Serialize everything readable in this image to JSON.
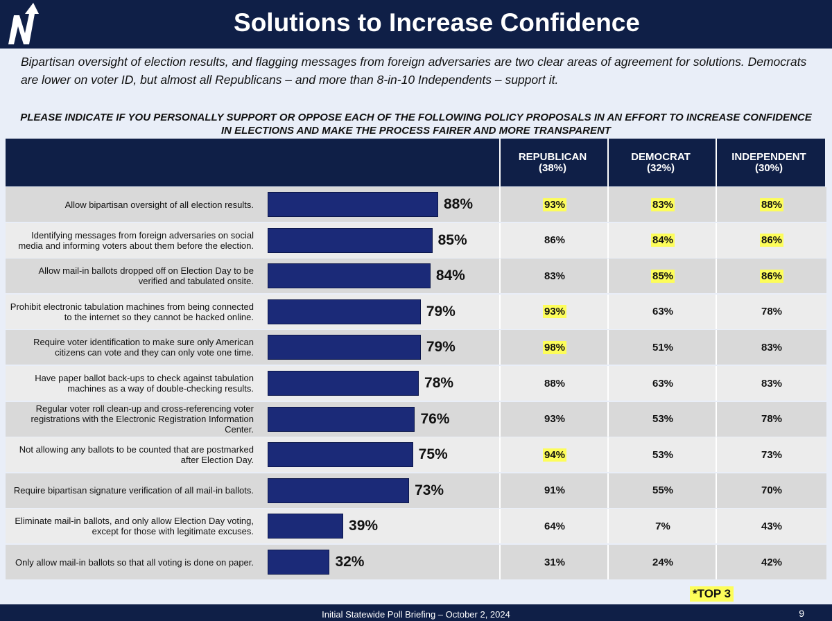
{
  "header": {
    "title": "Solutions to Increase Confidence",
    "subtitle": "Bipartisan oversight of election results, and flagging messages from foreign adversaries are two clear areas of agreement for solutions.   Democrats are lower on voter ID, but almost all Republicans – and more than 8-in-10 Independents – support it.",
    "question": "PLEASE INDICATE IF YOU PERSONALLY SUPPORT OR OPPOSE EACH OF THE FOLLOWING POLICY PROPOSALS IN AN EFFORT TO INCREASE CONFIDENCE IN ELECTIONS AND MAKE THE PROCESS FAIRER AND MORE TRANSPARENT"
  },
  "columns": [
    {
      "name": "REPUBLICAN",
      "share": "(38%)"
    },
    {
      "name": "DEMOCRAT",
      "share": "(32%)"
    },
    {
      "name": "INDEPENDENT",
      "share": "(30%)"
    }
  ],
  "chart_data": {
    "type": "bar",
    "orientation": "horizontal",
    "categories": [
      "Allow bipartisan oversight of all election results.",
      "Identifying messages from foreign adversaries on social media and informing voters about them before the election.",
      "Allow mail-in ballots dropped off on Election Day to be verified and tabulated onsite.",
      "Prohibit electronic tabulation machines from being connected to the internet so they cannot be hacked online.",
      "Require voter identification to make sure only American citizens can vote and they can only vote one time.",
      "Have paper ballot back-ups to check against tabulation machines as a way of double-checking results.",
      "Regular voter roll clean-up and cross-referencing voter registrations with the Electronic Registration Information Center.",
      "Not allowing any ballots to be counted that are postmarked after Election Day.",
      "Require bipartisan signature verification of all mail-in ballots.",
      "Eliminate mail-in ballots, and only allow Election Day voting, except for those with legitimate excuses.",
      "Only allow mail-in ballots so that all voting is done on paper."
    ],
    "values": [
      88,
      85,
      84,
      79,
      79,
      78,
      76,
      75,
      73,
      39,
      32
    ],
    "value_labels": [
      "88%",
      "85%",
      "84%",
      "79%",
      "79%",
      "78%",
      "76%",
      "75%",
      "73%",
      "39%",
      "32%"
    ],
    "bar_color": "#1b2a78",
    "table": {
      "republican": [
        "93%",
        "86%",
        "83%",
        "93%",
        "98%",
        "88%",
        "93%",
        "94%",
        "91%",
        "64%",
        "31%"
      ],
      "democrat": [
        "83%",
        "84%",
        "85%",
        "63%",
        "51%",
        "63%",
        "53%",
        "53%",
        "55%",
        "7%",
        "24%"
      ],
      "independent": [
        "88%",
        "86%",
        "86%",
        "78%",
        "83%",
        "83%",
        "78%",
        "73%",
        "70%",
        "43%",
        "42%"
      ]
    },
    "top3_highlight": {
      "republican": [
        true,
        false,
        false,
        true,
        true,
        false,
        false,
        true,
        false,
        false,
        false
      ],
      "democrat": [
        true,
        true,
        true,
        false,
        false,
        false,
        false,
        false,
        false,
        false,
        false
      ],
      "independent": [
        true,
        true,
        true,
        false,
        false,
        false,
        false,
        false,
        false,
        false,
        false
      ]
    },
    "highlight_color": "#fdfd5a"
  },
  "legend_note": "*TOP 3",
  "footer": {
    "text": "Initial Statewide Poll Briefing – October 2, 2024",
    "page": "9"
  },
  "colors": {
    "navy": "#0f1f47",
    "row_dark": "#d9d9d9",
    "row_light": "#ececec"
  }
}
